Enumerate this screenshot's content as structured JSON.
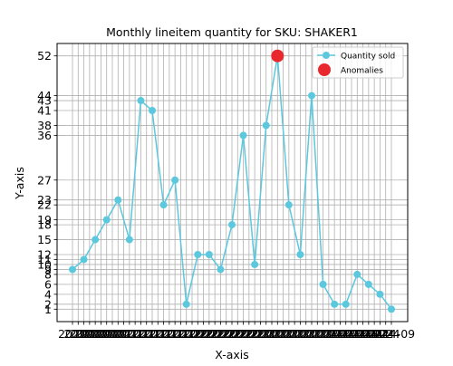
{
  "chart_data": {
    "type": "line",
    "title": "Monthly lineitem quantity for SKU: SHAKER1",
    "xlabel": "X-axis",
    "ylabel": "Y-axis",
    "x_tick_labels": [
      "2020",
      "2020",
      "2020",
      "2020",
      "2020",
      "2020",
      "2020",
      "2020",
      "2021",
      "2021",
      "2021",
      "2021",
      "2021",
      "2021",
      "2021",
      "2021",
      "2021",
      "2021",
      "2021",
      "2021",
      "2022",
      "2022",
      "2022",
      "2022",
      "2022",
      "2022",
      "2022",
      "2022",
      "2022",
      "2022",
      "2022",
      "2022",
      "2023",
      "2023",
      "2023",
      "2023",
      "2023",
      "2023",
      "2023",
      "2023",
      "2023",
      "2023",
      "2023",
      "2023",
      "2024",
      "2024",
      "2024",
      "2024",
      "2024",
      "2024",
      "2024",
      "2024",
      "2024",
      "2024",
      "2024",
      "2024",
      "2024-09"
    ],
    "y_ticks": [
      1,
      2,
      4,
      6,
      8,
      9,
      10,
      11,
      12,
      15,
      18,
      19,
      22,
      23,
      27,
      36,
      38,
      41,
      43,
      44,
      52
    ],
    "ylim": [
      -1.5,
      54.5
    ],
    "grid": true,
    "legend_position": "top-right",
    "series": [
      {
        "name": "Quantity sold",
        "color": "#5bc8de",
        "values": [
          9,
          11,
          15,
          19,
          23,
          15,
          43,
          41,
          22,
          27,
          2,
          12,
          12,
          9,
          18,
          36,
          10,
          38,
          52,
          22,
          12,
          44,
          6,
          2,
          2,
          8,
          6,
          4,
          1
        ]
      }
    ],
    "anomalies": {
      "name": "Anomalies",
      "color": "#e8282d",
      "indices": [
        18
      ],
      "values": [
        52
      ]
    }
  }
}
